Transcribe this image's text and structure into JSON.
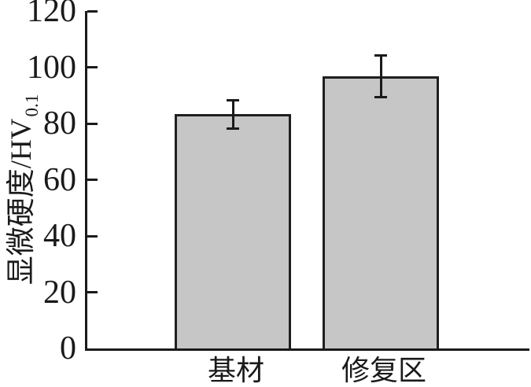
{
  "chart_data": {
    "type": "bar",
    "title": "",
    "xlabel": "",
    "ylabel": "显微硬度/HV",
    "ylabel_subscript": "0.1",
    "categories": [
      "基材",
      "修复区"
    ],
    "values": [
      83.3,
      96.8
    ],
    "error_bars": [
      5,
      7.5
    ],
    "ylim": [
      0,
      120
    ],
    "yticks": [
      0,
      20,
      40,
      60,
      80,
      100,
      120
    ],
    "grid": "off",
    "legend": "none",
    "colors": {
      "bar_fill": "#c6c6c6",
      "bar_border": "#1f1f1f",
      "axis": "#1a1a1a",
      "text": "#1a1a1a",
      "background": "#ffffff"
    }
  }
}
